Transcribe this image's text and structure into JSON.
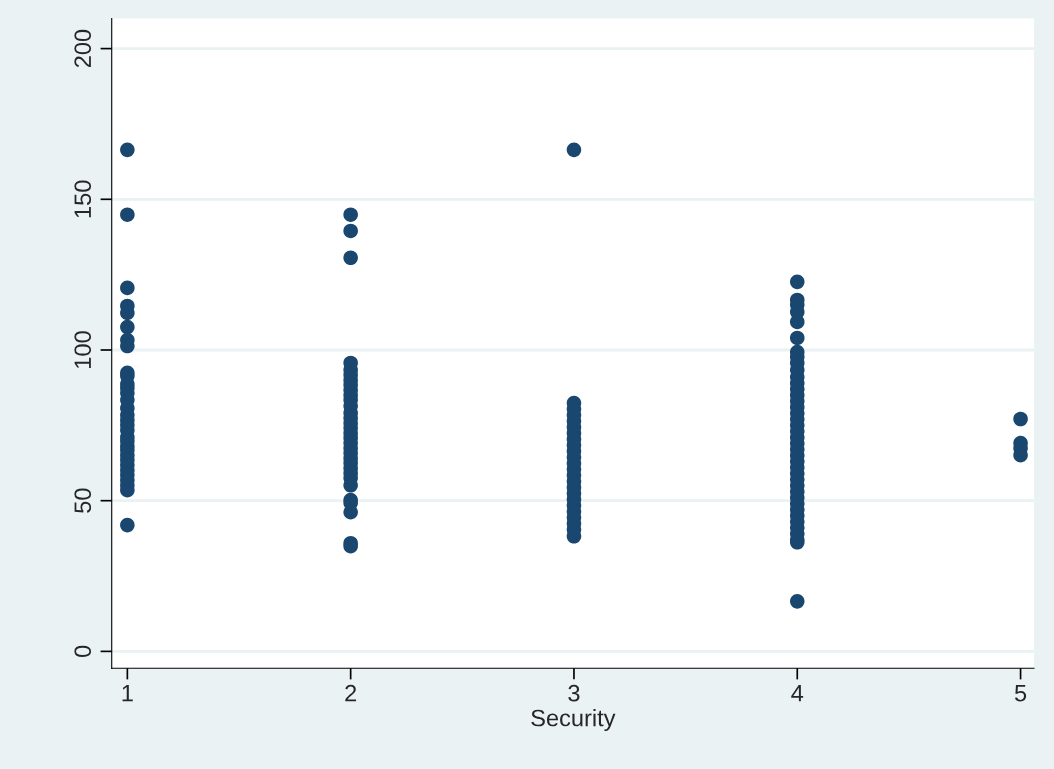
{
  "chart_data": {
    "type": "scatter",
    "xlabel": "Security",
    "series": [
      {
        "color": "#1a476f",
        "marker": "circle",
        "x": [
          1,
          1,
          1,
          1,
          1,
          1,
          1,
          1,
          1,
          1,
          1,
          1,
          1,
          1,
          1,
          1,
          1,
          1,
          1,
          1,
          1,
          1,
          1,
          1,
          1,
          1,
          1,
          1,
          1,
          1,
          1,
          1,
          2,
          2,
          2,
          2,
          2,
          2,
          2,
          2,
          2,
          2,
          2,
          2,
          2,
          2,
          2,
          2,
          2,
          2,
          2,
          2,
          2,
          2,
          2,
          2,
          2,
          2,
          2,
          2,
          2,
          2,
          2,
          2,
          3,
          3,
          3,
          3,
          3,
          3,
          3,
          3,
          3,
          3,
          3,
          3,
          3,
          3,
          3,
          3,
          3,
          3,
          3,
          3,
          3,
          3,
          3,
          3,
          4,
          4,
          4,
          4,
          4,
          4,
          4,
          4,
          4,
          4,
          4,
          4,
          4,
          4,
          4,
          4,
          4,
          4,
          4,
          4,
          4,
          4,
          4,
          4,
          4,
          4,
          4,
          4,
          4,
          4,
          4,
          4,
          4,
          4,
          4,
          4,
          4,
          4,
          4,
          4,
          5,
          5,
          5,
          5
        ],
        "values": [
          166.4,
          144.9,
          120.6,
          114.6,
          112.3,
          107.6,
          103.3,
          101.3,
          92.4,
          91.4,
          88.7,
          87.4,
          85.7,
          83.4,
          80.7,
          78.4,
          76.7,
          75.1,
          73.4,
          71.1,
          69.8,
          68.1,
          66.8,
          65.1,
          63.5,
          61.8,
          60.1,
          58.5,
          56.8,
          55.1,
          53.5,
          41.9,
          144.9,
          139.5,
          130.6,
          95.7,
          93.4,
          91.7,
          90.0,
          88.4,
          86.7,
          85.0,
          83.4,
          81.4,
          79.1,
          77.4,
          75.7,
          74.1,
          72.4,
          70.8,
          69.1,
          67.4,
          65.8,
          64.1,
          62.5,
          60.8,
          59.1,
          57.5,
          55.1,
          50.2,
          49.2,
          46.2,
          35.9,
          34.9,
          166.4,
          82.4,
          80.4,
          78.4,
          76.4,
          74.4,
          72.4,
          70.4,
          68.4,
          66.4,
          64.4,
          62.4,
          60.4,
          58.4,
          56.4,
          54.4,
          52.4,
          50.4,
          48.4,
          46.4,
          44.4,
          42.4,
          40.4,
          38.2,
          122.6,
          116.6,
          115.0,
          112.6,
          109.3,
          104.0,
          99.3,
          97.7,
          95.7,
          93.4,
          91,
          89,
          87,
          85,
          83,
          81,
          79,
          77,
          75,
          73,
          71,
          69,
          67,
          65,
          63,
          61,
          59,
          57,
          55,
          53,
          51,
          49,
          47,
          45,
          43,
          41,
          39,
          37,
          36.2,
          16.6,
          77.1,
          69.1,
          67.4,
          65.1
        ]
      }
    ],
    "xlim": [
      0.93,
      5.06
    ],
    "xticks": [
      1,
      2,
      3,
      4,
      5
    ],
    "ylim": [
      -5.6,
      210
    ],
    "yticks": [
      0,
      50,
      100,
      150,
      200
    ],
    "grid": "y"
  }
}
